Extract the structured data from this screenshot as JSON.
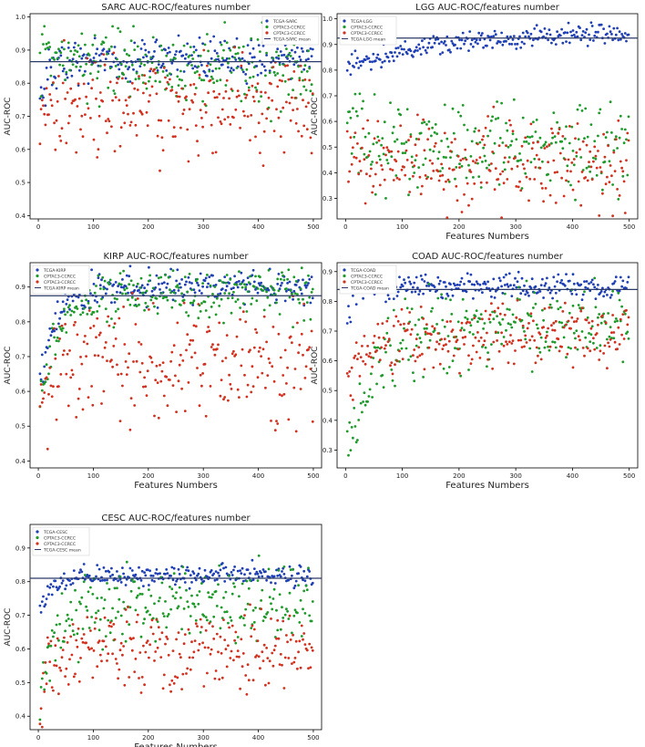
{
  "colors": {
    "blue_series": "#1f3fb4",
    "green_series": "#1e9a2a",
    "red_series": "#d1311f",
    "mean_line": "#2b3a67",
    "frame": "#000000",
    "background": "#ffffff"
  },
  "chart_data": [
    {
      "type": "scatter",
      "title": "SARC AUC-ROC/features number",
      "xlabel": "",
      "ylabel": "AUC-ROC",
      "xlim": [
        -15,
        515
      ],
      "ylim": [
        0.39,
        1.01
      ],
      "xticks": [
        0,
        100,
        200,
        300,
        400,
        500
      ],
      "yticks": [
        0.4,
        0.5,
        0.6,
        0.7,
        0.8,
        0.9,
        1.0
      ],
      "ytick_labels": [
        "0.4",
        "0.5",
        "0.6",
        "0.7",
        "0.8",
        "0.9",
        "1.0"
      ],
      "grid": false,
      "legend_position": "top-right",
      "mean_line": {
        "name": "TCGA-SARC mean",
        "y": 0.865
      },
      "series": [
        {
          "name": "TCGA-SARC",
          "color": "#1f3fb4",
          "profile": {
            "start": 0.74,
            "plateau": 0.875,
            "rise_rate": 0.06,
            "spread": 0.04
          }
        },
        {
          "name": "CPTAC3-CCRCC",
          "color": "#1e9a2a",
          "profile": {
            "start": 0.88,
            "plateau": 0.845,
            "rise_rate": 0.02,
            "spread": 0.07
          }
        },
        {
          "name": "CPTAC3-CCRCC",
          "color": "#d1311f",
          "profile": {
            "start": 0.45,
            "plateau": 0.745,
            "rise_rate": 0.15,
            "spread": 0.1
          }
        }
      ]
    },
    {
      "type": "scatter",
      "title": "LGG AUC-ROC/features number",
      "xlabel": "Features Numbers",
      "ylabel": "AUC-ROC",
      "xlim": [
        -15,
        515
      ],
      "ylim": [
        0.22,
        1.02
      ],
      "xticks": [
        0,
        100,
        200,
        300,
        400,
        500
      ],
      "yticks": [
        0.3,
        0.4,
        0.5,
        0.6,
        0.7,
        0.8,
        0.9,
        1.0
      ],
      "ytick_labels": [
        "0.3",
        "0.4",
        "0.5",
        "0.6",
        "0.7",
        "0.8",
        "0.9",
        "1.0"
      ],
      "grid": false,
      "legend_position": "top-left",
      "mean_line": {
        "name": "TCGA-LGG mean",
        "y": 0.925
      },
      "series": [
        {
          "name": "TCGA-LGG",
          "color": "#1f3fb4",
          "profile": {
            "start": 0.81,
            "plateau": 0.95,
            "rise_rate": 0.006,
            "spread": 0.025
          }
        },
        {
          "name": "CPTAC3-CCRCC",
          "color": "#1e9a2a",
          "profile": {
            "start": 0.62,
            "plateau": 0.5,
            "rise_rate": 0.03,
            "spread": 0.1
          }
        },
        {
          "name": "CPTAC3-CCRCC",
          "color": "#d1311f",
          "profile": {
            "start": 0.55,
            "plateau": 0.43,
            "rise_rate": 0.04,
            "spread": 0.1
          }
        }
      ]
    },
    {
      "type": "scatter",
      "title": "KIRP AUC-ROC/features number",
      "xlabel": "Features Numbers",
      "ylabel": "AUC-ROC",
      "xlim": [
        -15,
        515
      ],
      "ylim": [
        0.38,
        0.97
      ],
      "xticks": [
        0,
        100,
        200,
        300,
        400,
        500
      ],
      "yticks": [
        0.4,
        0.5,
        0.6,
        0.7,
        0.8,
        0.9
      ],
      "ytick_labels": [
        "0.4",
        "0.5",
        "0.6",
        "0.7",
        "0.8",
        "0.9"
      ],
      "grid": false,
      "legend_position": "top-left",
      "mean_line": {
        "name": "TCGA-KIRP mean",
        "y": 0.875
      },
      "series": [
        {
          "name": "TCGA-KIRP",
          "color": "#1f3fb4",
          "profile": {
            "start": 0.6,
            "plateau": 0.9,
            "rise_rate": 0.035,
            "spread": 0.03
          }
        },
        {
          "name": "CPTAC3-CCRCC",
          "color": "#1e9a2a",
          "profile": {
            "start": 0.55,
            "plateau": 0.88,
            "rise_rate": 0.03,
            "spread": 0.045
          }
        },
        {
          "name": "CPTAC3-CCRCC",
          "color": "#d1311f",
          "profile": {
            "start": 0.55,
            "plateau": 0.68,
            "rise_rate": 0.05,
            "spread": 0.11
          }
        }
      ]
    },
    {
      "type": "scatter",
      "title": "COAD AUC-ROC/features number",
      "xlabel": "Features Numbers",
      "ylabel": "AUC-ROC",
      "xlim": [
        -15,
        515
      ],
      "ylim": [
        0.24,
        0.93
      ],
      "xticks": [
        0,
        100,
        200,
        300,
        400,
        500
      ],
      "yticks": [
        0.3,
        0.4,
        0.5,
        0.6,
        0.7,
        0.8,
        0.9
      ],
      "ytick_labels": [
        "0.3",
        "0.4",
        "0.5",
        "0.6",
        "0.7",
        "0.8",
        "0.9"
      ],
      "grid": false,
      "legend_position": "top-left",
      "mean_line": {
        "name": "TCGA-COAD mean",
        "y": 0.84
      },
      "series": [
        {
          "name": "TCGA-COAD",
          "color": "#1f3fb4",
          "profile": {
            "start": 0.66,
            "plateau": 0.85,
            "rise_rate": 0.12,
            "spread": 0.025
          }
        },
        {
          "name": "CPTAC3-CCRCC",
          "color": "#1e9a2a",
          "profile": {
            "start": 0.28,
            "plateau": 0.72,
            "rise_rate": 0.018,
            "spread": 0.08
          }
        },
        {
          "name": "CPTAC3-CCRCC",
          "color": "#d1311f",
          "profile": {
            "start": 0.45,
            "plateau": 0.69,
            "rise_rate": 0.04,
            "spread": 0.07
          }
        }
      ]
    },
    {
      "type": "scatter",
      "title": "CESC AUC-ROC/features number",
      "xlabel": "Features Numbers",
      "ylabel": "AUC-ROC",
      "xlim": [
        -15,
        515
      ],
      "ylim": [
        0.36,
        0.97
      ],
      "xticks": [
        0,
        100,
        200,
        300,
        400,
        500
      ],
      "yticks": [
        0.4,
        0.5,
        0.6,
        0.7,
        0.8,
        0.9
      ],
      "ytick_labels": [
        "0.4",
        "0.5",
        "0.6",
        "0.7",
        "0.8",
        "0.9"
      ],
      "grid": false,
      "legend_position": "top-left",
      "mean_line": {
        "name": "TCGA-CESC mean",
        "y": 0.81
      },
      "series": [
        {
          "name": "TCGA-CESC",
          "color": "#1f3fb4",
          "profile": {
            "start": 0.72,
            "plateau": 0.82,
            "rise_rate": 0.03,
            "spread": 0.02
          }
        },
        {
          "name": "CPTAC3-CCRCC",
          "color": "#1e9a2a",
          "profile": {
            "start": 0.45,
            "plateau": 0.73,
            "rise_rate": 0.03,
            "spread": 0.07
          }
        },
        {
          "name": "CPTAC3-CCRCC",
          "color": "#d1311f",
          "profile": {
            "start": 0.4,
            "plateau": 0.6,
            "rise_rate": 0.06,
            "spread": 0.07
          }
        }
      ]
    }
  ]
}
